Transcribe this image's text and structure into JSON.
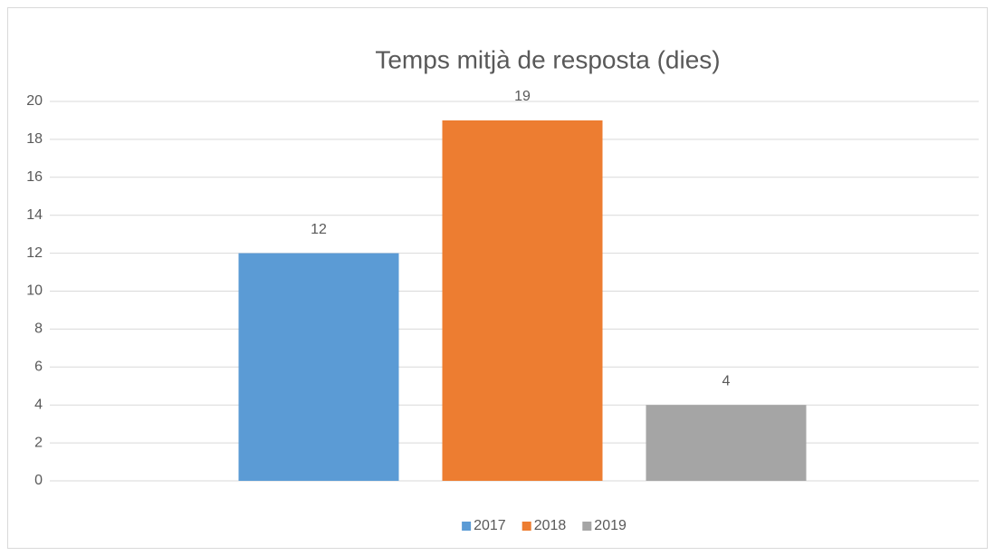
{
  "chart_data": {
    "type": "bar",
    "title": "Temps mitjà de resposta (dies)",
    "categories": [
      null
    ],
    "series": [
      {
        "name": "2017",
        "color": "#5b9bd5",
        "values": [
          12
        ]
      },
      {
        "name": "2018",
        "color": "#ed7d31",
        "values": [
          19
        ]
      },
      {
        "name": "2019",
        "color": "#a5a5a5",
        "values": [
          4
        ]
      }
    ],
    "ylim": [
      0,
      20
    ],
    "yticks": [
      0,
      2,
      4,
      6,
      8,
      10,
      12,
      14,
      16,
      18,
      20
    ],
    "grid": true,
    "legend": "bottom",
    "data_labels": true
  }
}
